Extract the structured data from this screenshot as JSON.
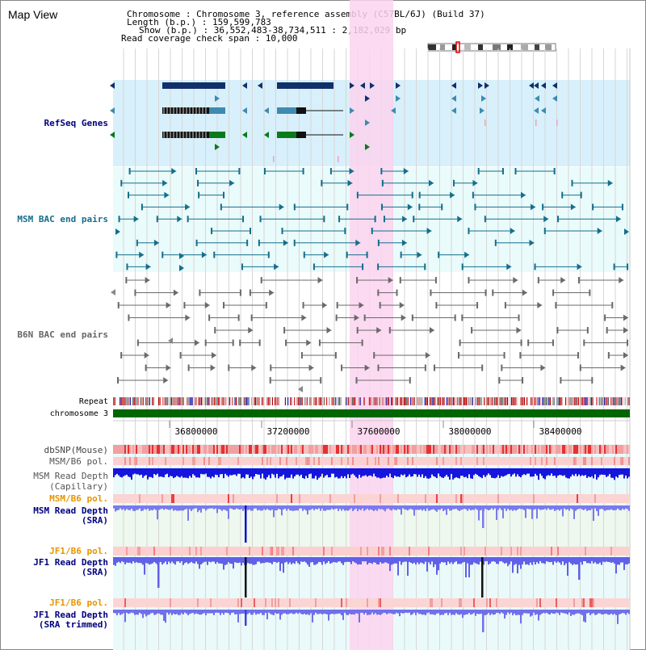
{
  "window": {
    "title": "Map View"
  },
  "header": {
    "chromosome_label": "Chromosome    : Chromosome 3, reference assembly (C57BL/6J) (Build 37)",
    "length_label": "Length (b.p.) : 159,599,783",
    "show_label": "Show (b.p.) : 36,552,483-38,734,511 : 2,182,029 bp",
    "coverage_label": "Read coverage check span : 10,000"
  },
  "colors": {
    "highlight_band": "#fbd4ee",
    "refseq_bg": "#d8f0fb",
    "bac_bg": "#eafbfb",
    "msm_color": "#146e8c",
    "b6n_color": "#6a6a6a",
    "navy_gene": "#10306a",
    "teal_gene": "#3e8ab0",
    "green_gene": "#0a7a1a",
    "chrom_bar": "#006600",
    "depth_blue": "#1c1cee",
    "depth_light": "#6a6aee",
    "label_navy": "#000080",
    "label_orange": "#e69500",
    "label_gray": "#555555"
  },
  "tracks": {
    "refseq": "RefSeq Genes",
    "msm_bac": "MSM BAC end pairs",
    "b6n_bac": "B6N BAC end pairs",
    "repeat": "Repeat",
    "chromosome": "chromosome 3",
    "dbsnp": "dbSNP(Mouse)",
    "msm_pol_1": "MSM/B6 pol.",
    "msm_depth_cap_1": "MSM Read Depth",
    "msm_depth_cap_2": "(Capillary)",
    "msm_pol_2": "MSM/B6 pol.",
    "msm_depth_sra_1": "MSM Read Depth",
    "msm_depth_sra_2": "(SRA)",
    "jf1_pol_1": "JF1/B6 pol.",
    "jf1_depth_1": "JF1 Read Depth",
    "jf1_depth_2": "(SRA)",
    "jf1_pol_2": "JF1/B6 pol.",
    "jf1_trim_1": "JF1 Read Depth",
    "jf1_trim_2": "(SRA trimmed)"
  },
  "axis": {
    "ticks": [
      "36800000",
      "37200000",
      "37600000",
      "38000000",
      "38400000"
    ]
  }
}
